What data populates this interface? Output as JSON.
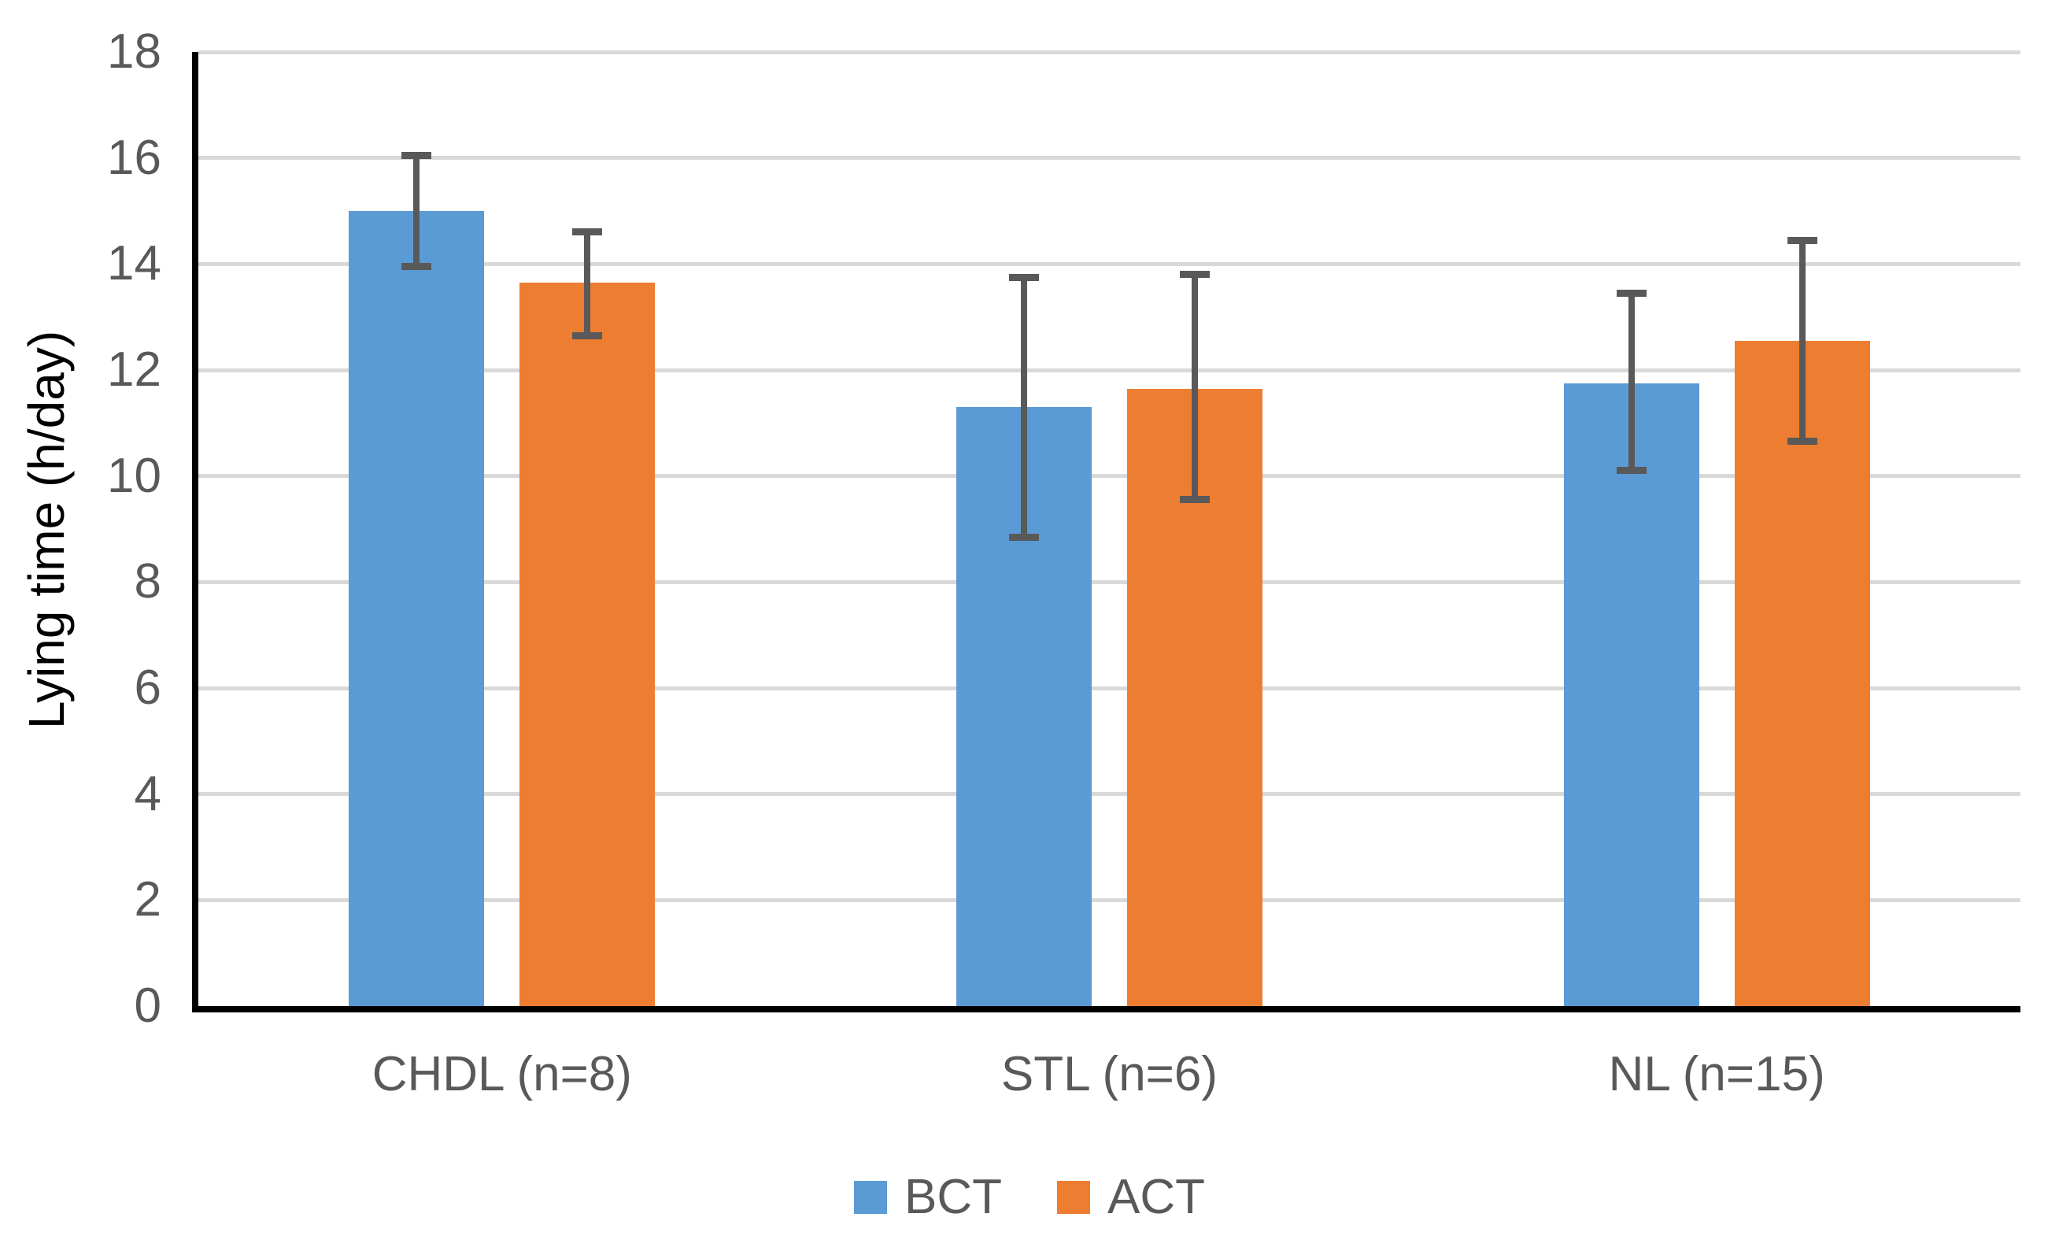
{
  "chart_data": {
    "type": "bar",
    "title": "",
    "categories": [
      "CHDL (n=8)",
      "STL (n=6)",
      "NL (n=15)"
    ],
    "series": [
      {
        "name": "BCT",
        "color": "#5B9BD5",
        "values": [
          15.0,
          11.3,
          11.75
        ],
        "error_low": [
          13.95,
          8.85,
          10.1
        ],
        "error_high": [
          16.05,
          13.75,
          13.45
        ]
      },
      {
        "name": "ACT",
        "color": "#ED7D31",
        "values": [
          13.65,
          11.65,
          12.55
        ],
        "error_low": [
          12.65,
          9.55,
          10.65
        ],
        "error_high": [
          14.6,
          13.8,
          14.45
        ]
      }
    ],
    "xlabel": "",
    "ylabel": "Lying time (h/day)",
    "ylim": [
      0,
      18
    ],
    "yticks": [
      0,
      2,
      4,
      6,
      8,
      10,
      12,
      14,
      16,
      18
    ],
    "grid": "horizontal",
    "legend_position": "bottom",
    "gridline_color": "#D9D9D9",
    "axis_line_color": "#000000",
    "error_bar_color": "#595959",
    "text_color": "#595959"
  }
}
